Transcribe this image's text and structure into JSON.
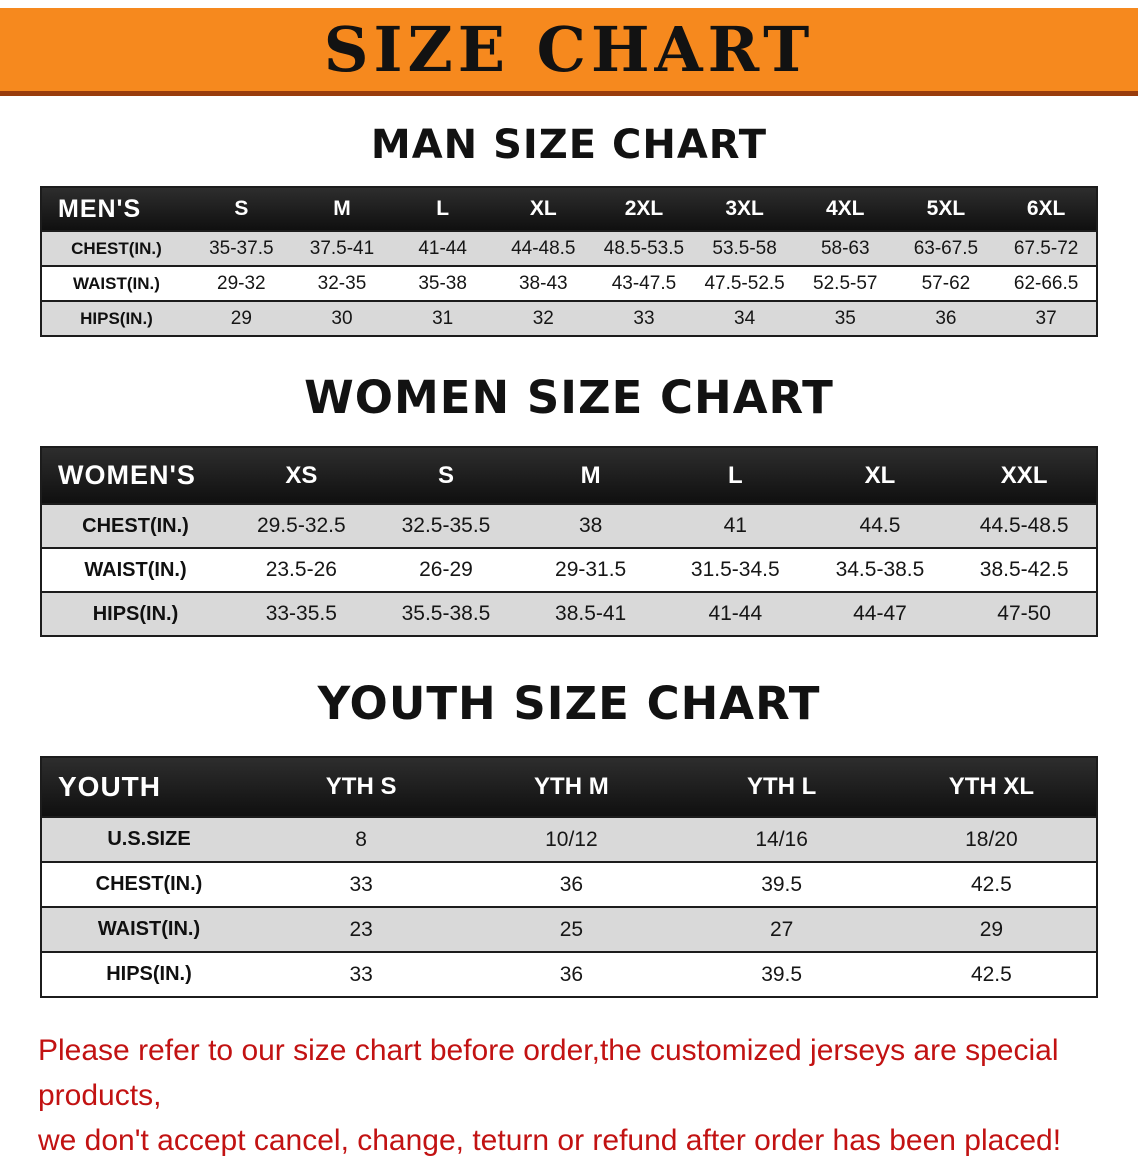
{
  "banner": {
    "title": "SIZE CHART"
  },
  "men": {
    "heading": "MAN SIZE CHART",
    "corner": "MEN'S",
    "columns": [
      "S",
      "M",
      "L",
      "XL",
      "2XL",
      "3XL",
      "4XL",
      "5XL",
      "6XL"
    ],
    "rows": [
      {
        "label": "CHEST(IN.)",
        "values": [
          "35-37.5",
          "37.5-41",
          "41-44",
          "44-48.5",
          "48.5-53.5",
          "53.5-58",
          "58-63",
          "63-67.5",
          "67.5-72"
        ]
      },
      {
        "label": "WAIST(IN.)",
        "values": [
          "29-32",
          "32-35",
          "35-38",
          "38-43",
          "43-47.5",
          "47.5-52.5",
          "52.5-57",
          "57-62",
          "62-66.5"
        ]
      },
      {
        "label": "HIPS(IN.)",
        "values": [
          "29",
          "30",
          "31",
          "32",
          "33",
          "34",
          "35",
          "36",
          "37"
        ]
      }
    ]
  },
  "women": {
    "heading": "WOMEN SIZE CHART",
    "corner": "WOMEN'S",
    "columns": [
      "XS",
      "S",
      "M",
      "L",
      "XL",
      "XXL"
    ],
    "rows": [
      {
        "label": "CHEST(IN.)",
        "values": [
          "29.5-32.5",
          "32.5-35.5",
          "38",
          "41",
          "44.5",
          "44.5-48.5"
        ]
      },
      {
        "label": "WAIST(IN.)",
        "values": [
          "23.5-26",
          "26-29",
          "29-31.5",
          "31.5-34.5",
          "34.5-38.5",
          "38.5-42.5"
        ]
      },
      {
        "label": "HIPS(IN.)",
        "values": [
          "33-35.5",
          "35.5-38.5",
          "38.5-41",
          "41-44",
          "44-47",
          "47-50"
        ]
      }
    ]
  },
  "youth": {
    "heading": "YOUTH SIZE CHART",
    "corner": "YOUTH",
    "columns": [
      "YTH S",
      "YTH M",
      "YTH L",
      "YTH XL"
    ],
    "rows": [
      {
        "label": "U.S.SIZE",
        "values": [
          "8",
          "10/12",
          "14/16",
          "18/20"
        ]
      },
      {
        "label": "CHEST(IN.)",
        "values": [
          "33",
          "36",
          "39.5",
          "42.5"
        ]
      },
      {
        "label": "WAIST(IN.)",
        "values": [
          "23",
          "25",
          "27",
          "29"
        ]
      },
      {
        "label": "HIPS(IN.)",
        "values": [
          "33",
          "36",
          "39.5",
          "42.5"
        ]
      }
    ]
  },
  "footer": {
    "line1": "Please refer to our size chart before order,the customized jerseys are special products,",
    "line2": "we don't accept cancel, change, teturn or refund after order has been placed!"
  },
  "colors": {
    "banner_bg": "#f6891e",
    "banner_edge": "#993c0c",
    "header_bg": "#0f0f0f",
    "header_bg_light": "#2e2e2e",
    "row_alt": "#d9d9d9",
    "notice_red": "#c21212",
    "text_dark": "#121212"
  }
}
